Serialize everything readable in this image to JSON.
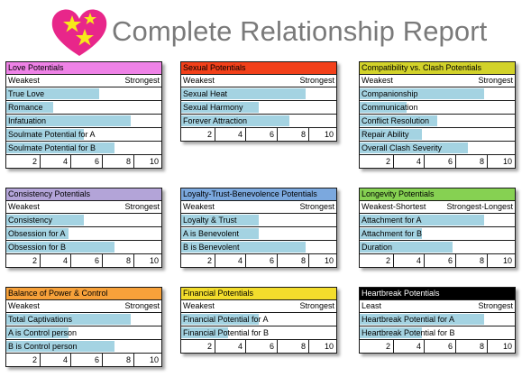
{
  "header": {
    "title": "Complete Relationship Report"
  },
  "colors": {
    "bar": "#a4d3e2",
    "border": "#1a1a1a"
  },
  "panels": [
    {
      "title": "Love Potentials",
      "color": "#ee82e6",
      "title_color": "#000000",
      "scale_low": "Weakest",
      "scale_high": "Strongest",
      "rows": [
        {
          "label": "True Love",
          "value": 6
        },
        {
          "label": "Romance",
          "value": 3
        },
        {
          "label": "Infatuation",
          "value": 8
        },
        {
          "label": "Soulmate Potential for A",
          "value": 5
        },
        {
          "label": "Soulmate Potential for B",
          "value": 7
        }
      ]
    },
    {
      "title": "Sexual Potentials",
      "color": "#f2401a",
      "title_color": "#000000",
      "scale_low": "Weakest",
      "scale_high": "Strongest",
      "rows": [
        {
          "label": "Sexual Heat",
          "value": 8
        },
        {
          "label": "Sexual Harmony",
          "value": 5
        },
        {
          "label": "Forever Attraction",
          "value": 7
        }
      ]
    },
    {
      "title": "Compatibility vs. Clash Potentials",
      "color": "#d2d22a",
      "title_color": "#000000",
      "scale_low": "Weakest",
      "scale_high": "Strongest",
      "rows": [
        {
          "label": "Companionship",
          "value": 8
        },
        {
          "label": "Communication",
          "value": 3
        },
        {
          "label": "Conflict Resolution",
          "value": 5
        },
        {
          "label": "Repair Ability",
          "value": 4
        },
        {
          "label": "Overall Clash Severity",
          "value": 7
        }
      ]
    },
    {
      "title": "Consistency Potentials",
      "color": "#b3a4d8",
      "title_color": "#000000",
      "scale_low": "Weakest",
      "scale_high": "Strongest",
      "rows": [
        {
          "label": "Consistency",
          "value": 5
        },
        {
          "label": "Obsession for A",
          "value": 4
        },
        {
          "label": "Obsession for B",
          "value": 7
        }
      ]
    },
    {
      "title": "Loyalty-Trust-Benevolence Potentials",
      "color": "#7ba8de",
      "title_color": "#000000",
      "scale_low": "Weakest",
      "scale_high": "Strongest",
      "rows": [
        {
          "label": "Loyalty & Trust",
          "value": 5
        },
        {
          "label": "A is Benevolent",
          "value": 5
        },
        {
          "label": "B is Benevolent",
          "value": 8
        }
      ]
    },
    {
      "title": "Longevity Potentials",
      "color": "#86d152",
      "title_color": "#000000",
      "scale_low": "Weakest-Shortest",
      "scale_high": "Strongest-Longest",
      "rows": [
        {
          "label": "Attachment for A",
          "value": 8
        },
        {
          "label": "Attachment for B",
          "value": 4
        },
        {
          "label": "Duration",
          "value": 6
        }
      ]
    },
    {
      "title": "Balance of Power & Control",
      "color": "#f7a13a",
      "title_color": "#000000",
      "scale_low": "Weakest",
      "scale_high": "Strongest",
      "rows": [
        {
          "label": "Total Captivations",
          "value": 8
        },
        {
          "label": "A is Control person",
          "value": 4
        },
        {
          "label": "B is Control person",
          "value": 7
        }
      ]
    },
    {
      "title": "Financial Potentials",
      "color": "#f3dd2c",
      "title_color": "#000000",
      "scale_low": "Weakest",
      "scale_high": "Strongest",
      "rows": [
        {
          "label": "Financial Potential for A",
          "value": 5
        },
        {
          "label": "Financial Potential for B",
          "value": 3
        }
      ]
    },
    {
      "title": "Heartbreak Potentials",
      "color": "#000000",
      "title_color": "#ffffff",
      "scale_low": "Least",
      "scale_high": "Strongest",
      "rows": [
        {
          "label": "Heartbreak Potential for A",
          "value": 8
        },
        {
          "label": "Heartbreak Potential for B",
          "value": 4
        }
      ]
    }
  ],
  "axis_ticks": [
    "2",
    "4",
    "6",
    "8",
    "10"
  ],
  "axis_max": 10
}
